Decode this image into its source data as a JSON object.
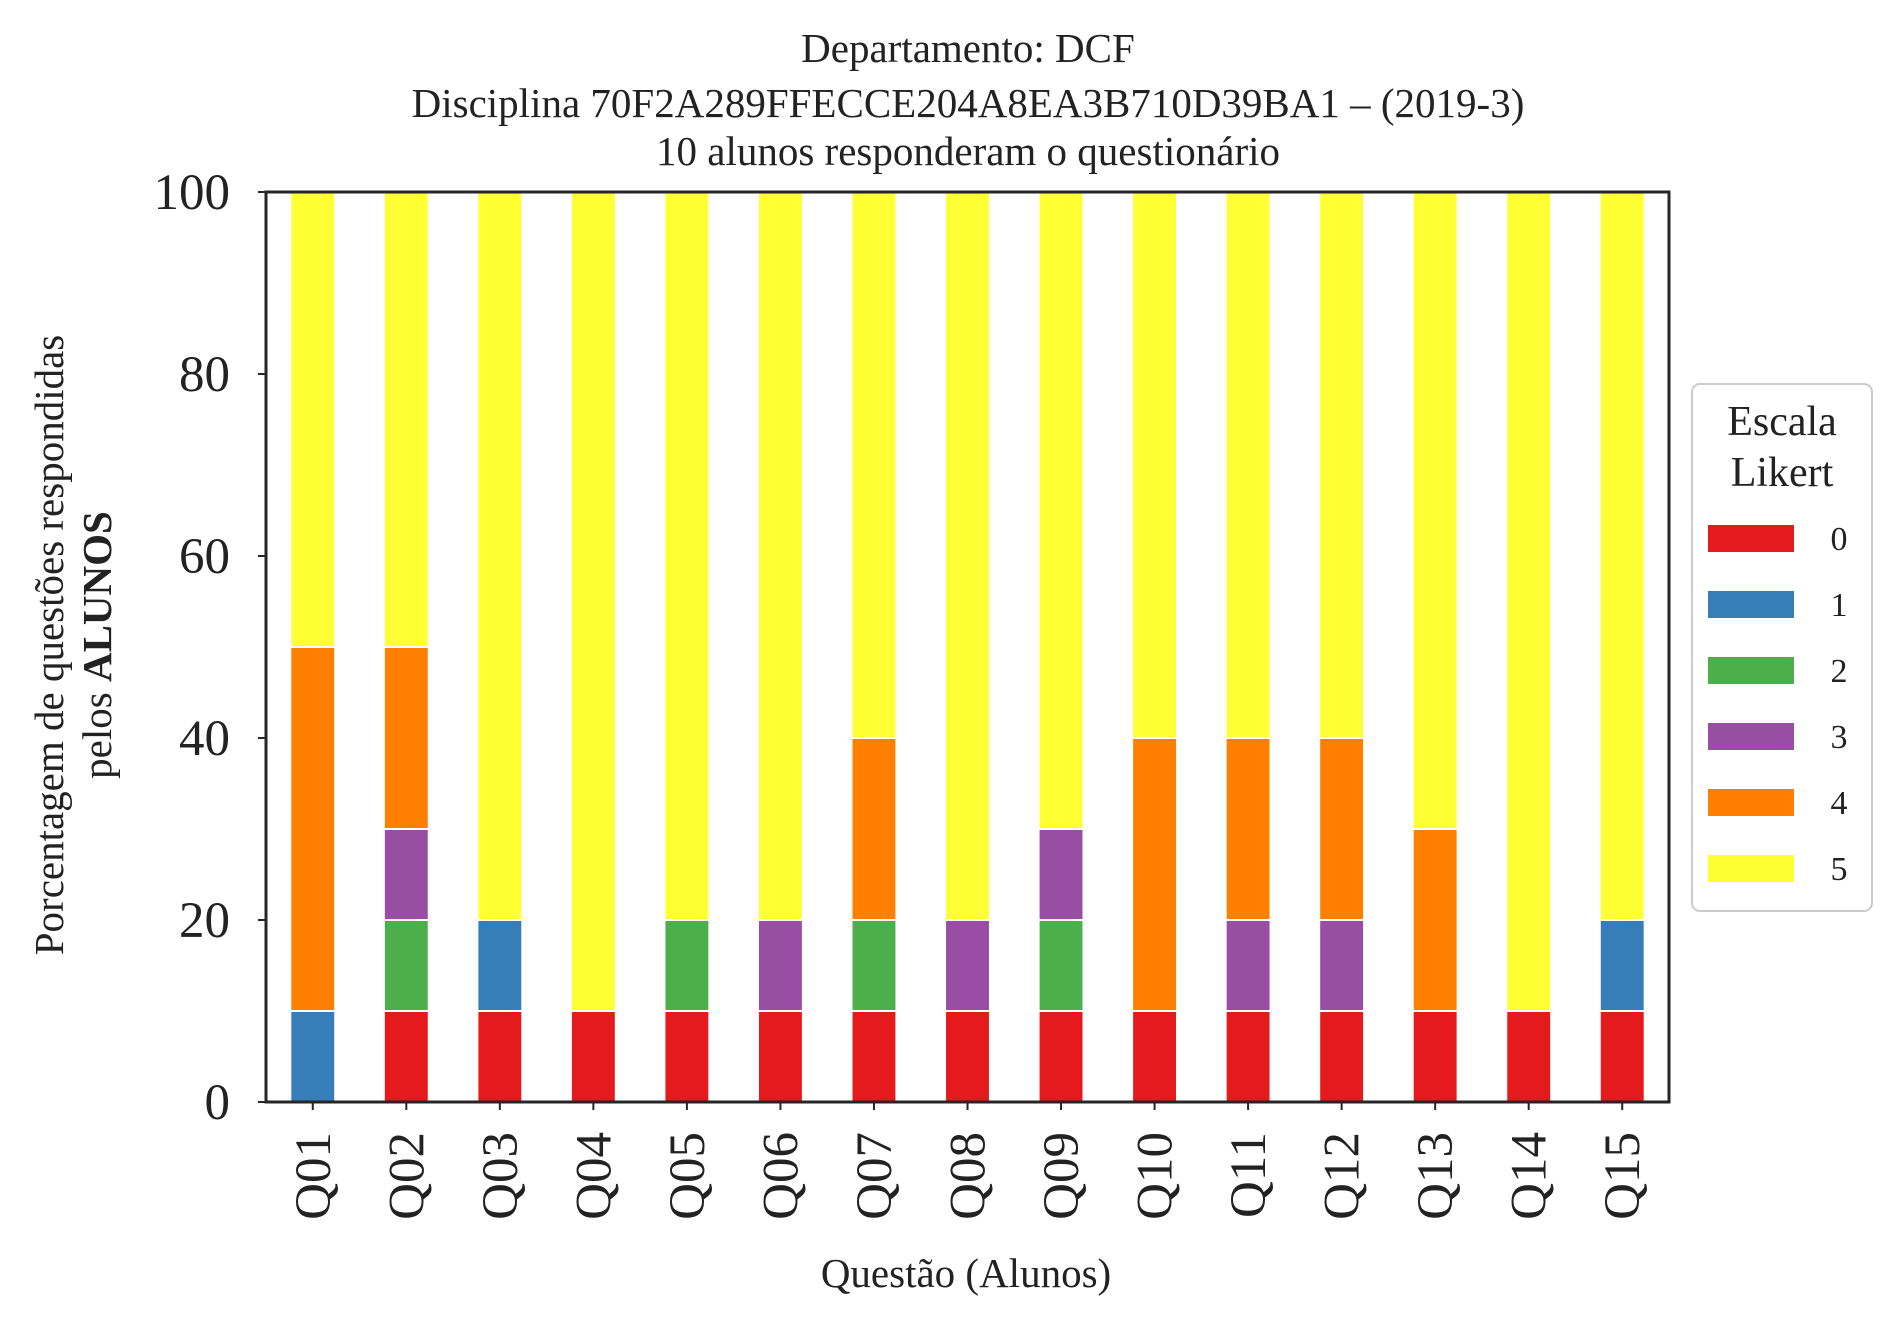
{
  "chart_data": {
    "type": "bar",
    "stacked": true,
    "title_lines": [
      "Departamento: DCF",
      "Disciplina 70F2A289FFECCE204A8EA3B710D39BA1 – (2019-3)",
      "10 alunos responderam o questionário"
    ],
    "xlabel": "Questão (Alunos)",
    "ylabel_line1": "Porcentagem de questões respondidas",
    "ylabel_line2_prefix": "pelos ",
    "ylabel_line2_bold": "ALUNOS",
    "ylim": [
      0,
      100
    ],
    "yticks": [
      "0",
      "20",
      "40",
      "60",
      "80",
      "100"
    ],
    "categories": [
      "Q01",
      "Q02",
      "Q03",
      "Q04",
      "Q05",
      "Q06",
      "Q07",
      "Q08",
      "Q09",
      "Q10",
      "Q11",
      "Q12",
      "Q13",
      "Q14",
      "Q15"
    ],
    "series": [
      {
        "name": "0",
        "color": "#e41a1c",
        "values": [
          0,
          10,
          10,
          10,
          10,
          10,
          10,
          10,
          10,
          10,
          10,
          10,
          10,
          10,
          10
        ]
      },
      {
        "name": "1",
        "color": "#377eb8",
        "values": [
          10,
          0,
          10,
          0,
          0,
          0,
          0,
          0,
          0,
          0,
          0,
          0,
          0,
          0,
          10
        ]
      },
      {
        "name": "2",
        "color": "#4daf4a",
        "values": [
          0,
          10,
          0,
          0,
          10,
          0,
          10,
          0,
          10,
          0,
          0,
          0,
          0,
          0,
          0
        ]
      },
      {
        "name": "3",
        "color": "#984ea3",
        "values": [
          0,
          10,
          0,
          0,
          0,
          10,
          0,
          10,
          10,
          0,
          10,
          10,
          0,
          0,
          0
        ]
      },
      {
        "name": "4",
        "color": "#ff7f00",
        "values": [
          40,
          20,
          0,
          0,
          0,
          0,
          20,
          0,
          0,
          30,
          20,
          20,
          20,
          0,
          0
        ]
      },
      {
        "name": "5",
        "color": "#ffff33",
        "values": [
          50,
          50,
          80,
          90,
          80,
          80,
          60,
          80,
          70,
          60,
          60,
          60,
          70,
          90,
          80
        ]
      }
    ],
    "legend": {
      "title_lines": [
        "Escala",
        "Likert"
      ],
      "placement": "center-right outside"
    },
    "grid": false
  }
}
